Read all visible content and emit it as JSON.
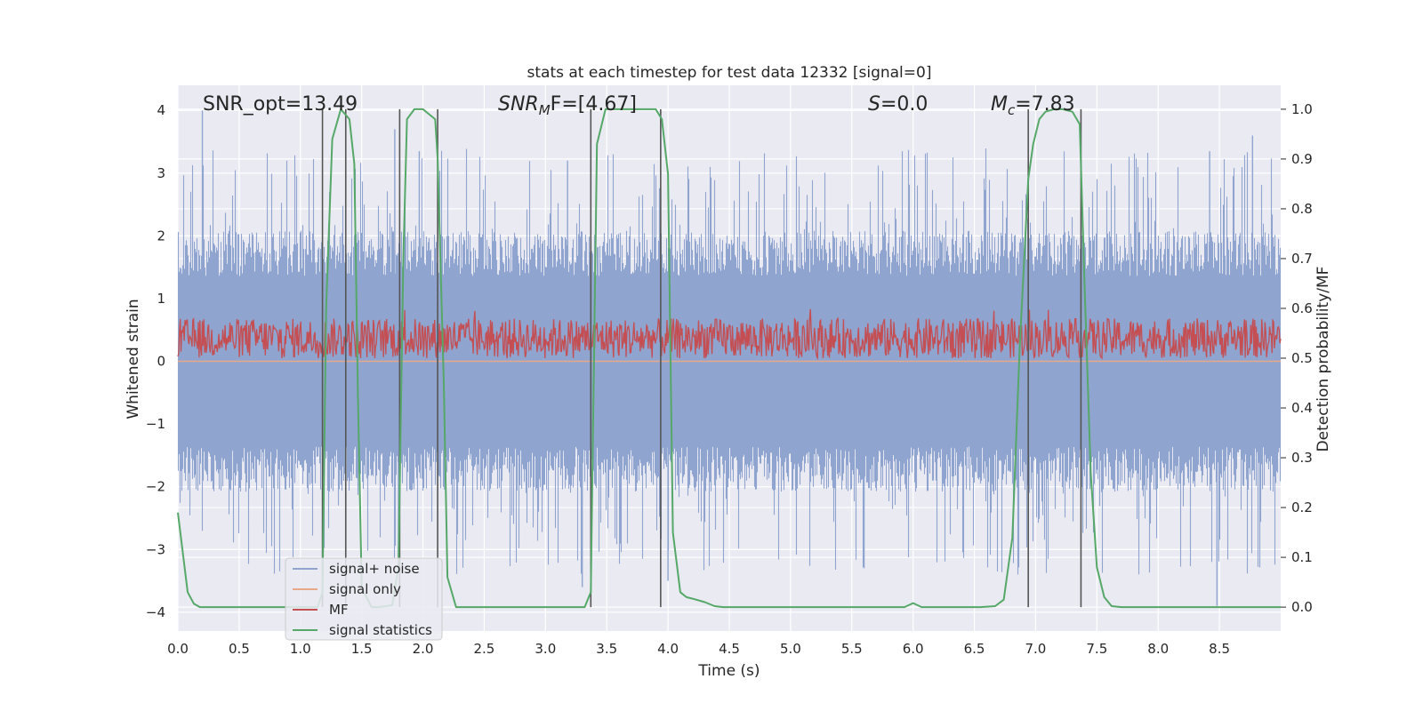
{
  "chart_data": {
    "type": "line",
    "title": "stats at each timestep for test data 12332 [signal=0]",
    "xlabel": "Time (s)",
    "ylabel": "Whitened strain",
    "ylabel_right": "Detection probability/MF",
    "xlim": [
      0,
      9.0
    ],
    "ylim": [
      -4.3,
      4.4
    ],
    "ylim_right": [
      -0.048,
      1.048
    ],
    "x_ticks": [
      "0.0",
      "0.5",
      "1.0",
      "1.5",
      "2.0",
      "2.5",
      "3.0",
      "3.5",
      "4.0",
      "4.5",
      "5.0",
      "5.5",
      "6.0",
      "6.5",
      "7.0",
      "7.5",
      "8.0",
      "8.5"
    ],
    "y_ticks": [
      "−4",
      "−3",
      "−2",
      "−1",
      "0",
      "1",
      "2",
      "3",
      "4"
    ],
    "y_ticks_right": [
      "0.0",
      "0.1",
      "0.2",
      "0.3",
      "0.4",
      "0.5",
      "0.6",
      "0.7",
      "0.8",
      "0.9",
      "1.0"
    ],
    "grid": true,
    "legend_position": "lower-left",
    "annotations": [
      {
        "text": "SNR_opt=13.49",
        "x": 0.2
      },
      {
        "base": "SNR",
        "sub": "M",
        "rest": "F=[4.67]",
        "x": 2.6
      },
      {
        "base": "S",
        "rest": "=0.0",
        "x": 5.6
      },
      {
        "base": "M",
        "sub": "c",
        "rest": "=7.83",
        "x": 6.6
      }
    ],
    "vertical_lines": [
      1.18,
      1.37,
      1.81,
      2.12,
      3.37,
      3.94,
      6.94,
      7.37
    ],
    "series": [
      {
        "name": "signal+ noise",
        "color": "#8fa5cf",
        "axis": "left",
        "envelope": {
          "upper_typical": 1.6,
          "upper_max": 4.0,
          "lower_typical": -1.6,
          "lower_min": -4.0
        },
        "spikes": [
          {
            "x": 0.2,
            "y": 4.0
          },
          {
            "x": 1.77,
            "y": 3.7
          },
          {
            "x": 1.97,
            "y": 3.35
          },
          {
            "x": 3.18,
            "y": 3.2
          },
          {
            "x": 8.42,
            "y": 3.35
          },
          {
            "x": 8.77,
            "y": 3.6
          },
          {
            "x": 8.48,
            "y": -3.9
          },
          {
            "x": 5.6,
            "y": -3.3
          },
          {
            "x": 4.0,
            "y": -3.5
          },
          {
            "x": 3.3,
            "y": -3.6
          },
          {
            "x": 1.8,
            "y": -3.2
          }
        ]
      },
      {
        "name": "signal only",
        "color": "#e8a88a",
        "axis": "left",
        "x": [
          0,
          9.0
        ],
        "y": [
          0,
          0
        ]
      },
      {
        "name": "MF",
        "color": "#c44e52",
        "axis": "right",
        "base": 0.54,
        "amplitude_typical": 0.04,
        "max": 0.6,
        "min": 0.5
      },
      {
        "name": "signal statistics",
        "color": "#55a868",
        "axis": "right",
        "x": [
          0.0,
          0.08,
          0.13,
          0.18,
          0.3,
          1.14,
          1.18,
          1.21,
          1.26,
          1.33,
          1.4,
          1.44,
          1.47,
          1.5,
          1.58,
          1.64,
          1.75,
          1.8,
          1.84,
          1.87,
          1.93,
          2.0,
          2.05,
          2.1,
          2.12,
          2.17,
          2.2,
          2.27,
          2.32,
          3.32,
          3.37,
          3.42,
          3.49,
          3.58,
          3.9,
          3.95,
          4.0,
          4.04,
          4.1,
          4.15,
          4.2,
          4.3,
          4.38,
          4.45,
          4.6,
          5.93,
          6.0,
          6.07,
          6.55,
          6.67,
          6.74,
          6.81,
          6.87,
          6.94,
          6.98,
          7.03,
          7.08,
          7.15,
          7.22,
          7.3,
          7.36,
          7.4,
          7.45,
          7.5,
          7.56,
          7.62,
          7.7,
          9.0
        ],
        "y": [
          0.19,
          0.03,
          0.007,
          0.0,
          0.0,
          0.0,
          0.03,
          0.6,
          0.94,
          1.0,
          0.98,
          0.89,
          0.42,
          0.04,
          0.0,
          0.0,
          0.004,
          0.08,
          0.7,
          0.98,
          1.0,
          1.0,
          0.99,
          0.98,
          0.9,
          0.45,
          0.06,
          0.0,
          0.0,
          0.0,
          0.03,
          0.93,
          1.0,
          1.0,
          1.0,
          0.98,
          0.87,
          0.15,
          0.03,
          0.02,
          0.017,
          0.01,
          0.002,
          0.0,
          0.0,
          0.0,
          0.008,
          0.0,
          0.0,
          0.002,
          0.015,
          0.14,
          0.52,
          0.86,
          0.93,
          0.98,
          0.995,
          1.0,
          1.0,
          0.995,
          0.97,
          0.64,
          0.27,
          0.08,
          0.02,
          0.002,
          0.0,
          0.0
        ]
      }
    ]
  }
}
